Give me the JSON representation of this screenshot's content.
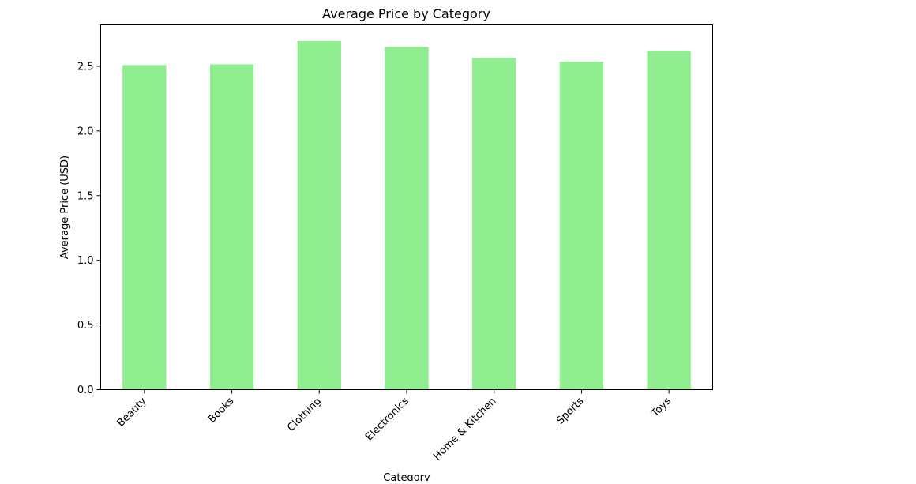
{
  "chart_data": {
    "type": "bar",
    "title": "Average Price by Category",
    "xlabel": "Category",
    "ylabel": "Average Price (USD)",
    "categories": [
      "Beauty",
      "Books",
      "Clothing",
      "Electronics",
      "Home & Kitchen",
      "Sports",
      "Toys"
    ],
    "values": [
      2.51,
      2.515,
      2.695,
      2.65,
      2.565,
      2.535,
      2.62
    ],
    "ylim": [
      0,
      2.82
    ],
    "yticks": [
      0.0,
      0.5,
      1.0,
      1.5,
      2.0,
      2.5
    ],
    "ytick_labels": [
      "0.0",
      "0.5",
      "1.0",
      "1.5",
      "2.0",
      "2.5"
    ],
    "bar_color": "#90ee90",
    "grid": false,
    "legend": "none"
  }
}
